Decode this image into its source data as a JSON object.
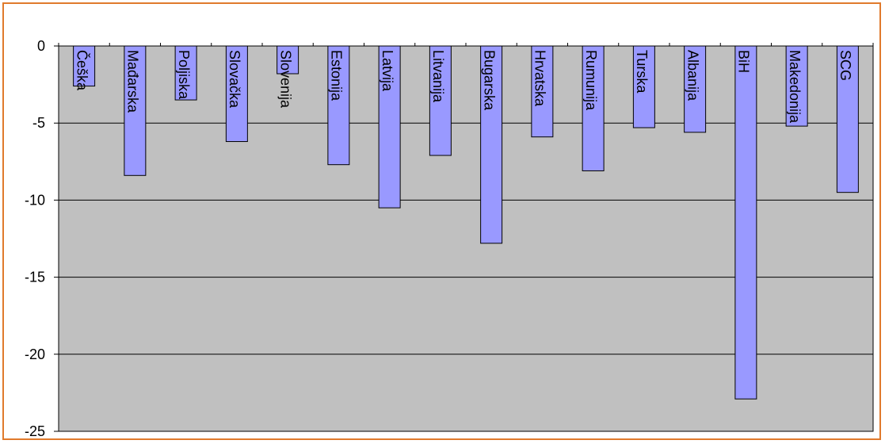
{
  "chart_data": {
    "type": "bar",
    "categories": [
      "Češka",
      "Mađarska",
      "Poljiska",
      "Slovačka",
      "Slovenija",
      "Estonija",
      "Latvija",
      "Litvanija",
      "Bugarska",
      "Hrvatska",
      "Rumunija",
      "Turska",
      "Albanija",
      "BiH",
      "Makedonija",
      "SCG"
    ],
    "values": [
      -2.6,
      -8.4,
      -3.5,
      -6.2,
      -1.8,
      -7.7,
      -10.5,
      -7.1,
      -12.8,
      -5.9,
      -8.1,
      -5.3,
      -5.6,
      -22.9,
      -5.2,
      -9.5
    ],
    "title": "",
    "xlabel": "",
    "ylabel": "",
    "ylim": [
      -25,
      0
    ],
    "yticks": [
      0,
      -5,
      -10,
      -15,
      -20,
      -25
    ],
    "grid": true,
    "colors": {
      "bar_fill": "#9999ff",
      "bar_stroke": "#000000",
      "plot_background": "#c0c0c0",
      "frame_border": "#e07a2c",
      "gridline": "#000000"
    }
  }
}
